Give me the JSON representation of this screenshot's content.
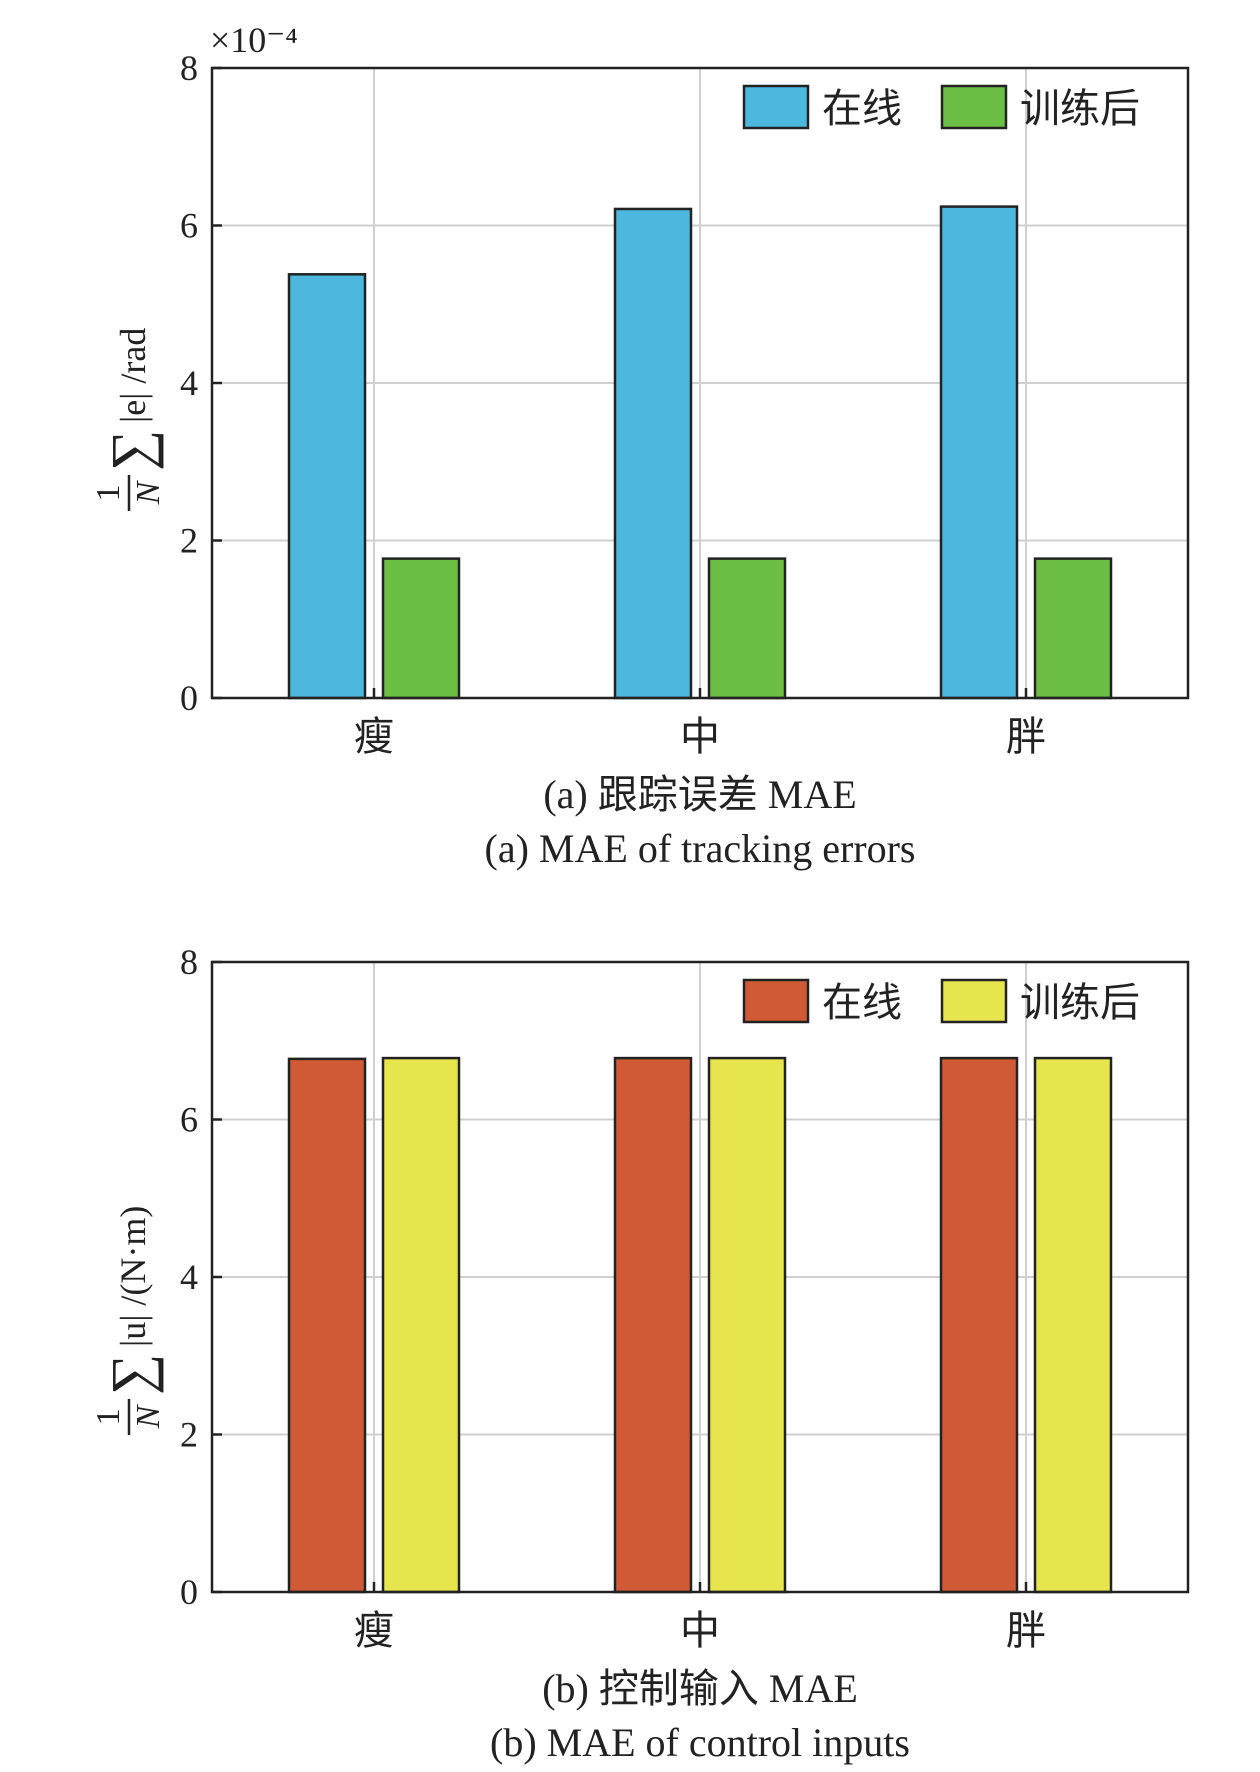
{
  "chart_data": [
    {
      "type": "bar",
      "categories": [
        "瘦",
        "中",
        "胖"
      ],
      "series": [
        {
          "name": "在线",
          "values": [
            5.38,
            6.21,
            6.24
          ],
          "color": "#4DB8DE"
        },
        {
          "name": "训练后",
          "values": [
            1.77,
            1.77,
            1.77
          ],
          "color": "#6DBE45"
        }
      ],
      "ylim": [
        0,
        8
      ],
      "yticks": [
        "0",
        "2",
        "4",
        "6",
        "8"
      ],
      "y_multiplier": "×10⁻⁴",
      "ylabel": {
        "fraction_num": "1",
        "fraction_den": "N",
        "sum": "∑",
        "expr": "|e| /rad"
      },
      "caption_cn": "(a) 跟踪误差 MAE",
      "caption_en": "(a) MAE of tracking errors",
      "grid": true,
      "legend_position": "top-right"
    },
    {
      "type": "bar",
      "categories": [
        "瘦",
        "中",
        "胖"
      ],
      "series": [
        {
          "name": "在线",
          "values": [
            6.77,
            6.78,
            6.78
          ],
          "color": "#D05A35"
        },
        {
          "name": "训练后",
          "values": [
            6.78,
            6.78,
            6.78
          ],
          "color": "#E6E54E"
        }
      ],
      "ylim": [
        0,
        8
      ],
      "yticks": [
        "0",
        "2",
        "4",
        "6",
        "8"
      ],
      "ylabel": {
        "fraction_num": "1",
        "fraction_den": "N",
        "sum": "∑",
        "expr": "|u| /(N·m)"
      },
      "caption_cn": "(b) 控制输入 MAE",
      "caption_en": "(b) MAE of control inputs",
      "grid": true,
      "legend_position": "top-right"
    }
  ]
}
